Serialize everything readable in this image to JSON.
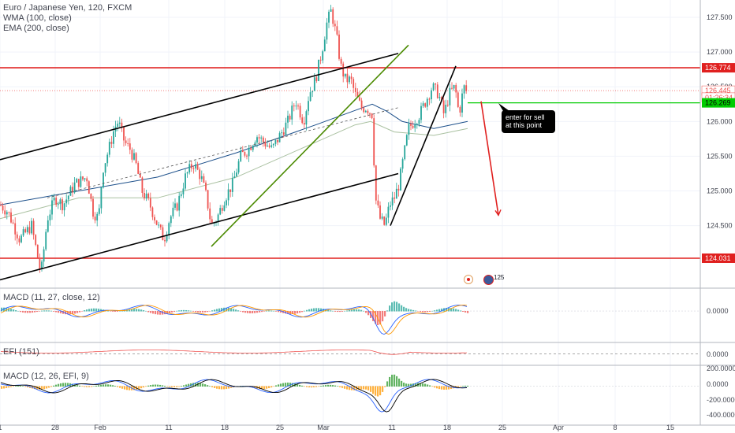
{
  "legend": {
    "title": "Euro / Japanese Yen, 120, FXCM",
    "wma": "WMA (100, close)",
    "ema": "EMA (200, close)",
    "macd1": "MACD (11, 27, close, 12)",
    "efi": "EFI (151)",
    "macd2": "MACD (12, 26, EFI, 9)"
  },
  "annotation": "enter for sell at this point",
  "event_badge_count": "125",
  "colors": {
    "up": "#26a69a",
    "down": "#ef5350",
    "level": "#e0201f",
    "channel": "#000000",
    "trendline": "#4a8a00",
    "green_level": "#00cc00",
    "wma": "#1c4f8a",
    "ema": "#a9c0a0",
    "macd_line": "#2962ff",
    "signal_line": "#ff9800",
    "efi_line": "#ef5350",
    "arrow": "#e0201f"
  },
  "chart_data": {
    "type": "candlestick",
    "title": "Euro / Japanese Yen, 120, FXCM",
    "x_tick_labels": [
      "1",
      "28",
      "Feb",
      "11",
      "18",
      "25",
      "Mar",
      "11",
      "18",
      "25",
      "Apr",
      "8",
      "15"
    ],
    "price_axis": {
      "range": [
        123.6,
        127.75
      ],
      "ticks": [
        "127.500",
        "127.000",
        "126.500",
        "126.000",
        "125.500",
        "125.000",
        "124.500"
      ]
    },
    "price_labels": {
      "resistance": "126.774",
      "last_price": "126.445",
      "countdown": "01:26:34",
      "entry": "126.269",
      "support": "124.031"
    },
    "horizontal_levels": [
      126.774,
      124.031
    ],
    "entry_level": 126.269,
    "price_path": [
      [
        0,
        124.8
      ],
      [
        10,
        124.7
      ],
      [
        25,
        124.3
      ],
      [
        40,
        124.5
      ],
      [
        52,
        123.8
      ],
      [
        60,
        124.6
      ],
      [
        70,
        124.9
      ],
      [
        80,
        124.8
      ],
      [
        95,
        125.1
      ],
      [
        110,
        125.2
      ],
      [
        118,
        124.7
      ],
      [
        125,
        124.6
      ],
      [
        130,
        125.3
      ],
      [
        138,
        125.6
      ],
      [
        145,
        125.9
      ],
      [
        150,
        126.0
      ],
      [
        158,
        125.7
      ],
      [
        165,
        125.6
      ],
      [
        172,
        125.4
      ],
      [
        180,
        125.0
      ],
      [
        190,
        124.8
      ],
      [
        200,
        124.5
      ],
      [
        208,
        124.3
      ],
      [
        215,
        124.6
      ],
      [
        225,
        124.8
      ],
      [
        235,
        125.2
      ],
      [
        245,
        125.4
      ],
      [
        255,
        125.2
      ],
      [
        262,
        124.9
      ],
      [
        268,
        124.5
      ],
      [
        275,
        124.6
      ],
      [
        285,
        124.9
      ],
      [
        295,
        125.1
      ],
      [
        305,
        125.5
      ],
      [
        315,
        125.6
      ],
      [
        325,
        125.8
      ],
      [
        335,
        125.7
      ],
      [
        345,
        125.6
      ],
      [
        355,
        125.8
      ],
      [
        365,
        126.0
      ],
      [
        375,
        126.3
      ],
      [
        385,
        126.0
      ],
      [
        392,
        126.4
      ],
      [
        400,
        126.6
      ],
      [
        408,
        127.0
      ],
      [
        414,
        127.4
      ],
      [
        420,
        127.6
      ],
      [
        427,
        127.2
      ],
      [
        432,
        126.8
      ],
      [
        438,
        126.6
      ],
      [
        445,
        126.6
      ],
      [
        450,
        126.4
      ],
      [
        458,
        126.2
      ],
      [
        465,
        126.2
      ],
      [
        472,
        126.1
      ],
      [
        476,
        124.9
      ],
      [
        482,
        124.6
      ],
      [
        488,
        124.5
      ],
      [
        494,
        124.8
      ],
      [
        500,
        124.9
      ],
      [
        506,
        125.1
      ],
      [
        512,
        125.5
      ],
      [
        518,
        125.9
      ],
      [
        525,
        126.0
      ],
      [
        532,
        126.1
      ],
      [
        540,
        126.3
      ],
      [
        548,
        126.5
      ],
      [
        556,
        126.4
      ],
      [
        563,
        126.1
      ],
      [
        570,
        126.4
      ],
      [
        577,
        126.5
      ],
      [
        582,
        126.1
      ],
      [
        588,
        126.5
      ],
      [
        593,
        126.4
      ]
    ],
    "wma_path": [
      [
        0,
        124.8
      ],
      [
        100,
        125.0
      ],
      [
        200,
        125.2
      ],
      [
        300,
        125.55
      ],
      [
        400,
        125.95
      ],
      [
        460,
        126.2
      ],
      [
        472,
        126.25
      ],
      [
        490,
        126.15
      ],
      [
        510,
        126.0
      ],
      [
        550,
        125.9
      ],
      [
        593,
        126.0
      ]
    ],
    "ema_path": [
      [
        0,
        124.6
      ],
      [
        100,
        124.9
      ],
      [
        200,
        124.9
      ],
      [
        300,
        125.2
      ],
      [
        400,
        125.7
      ],
      [
        450,
        125.95
      ],
      [
        470,
        126.0
      ],
      [
        500,
        125.85
      ],
      [
        550,
        125.8
      ],
      [
        593,
        125.9
      ]
    ],
    "lines": [
      {
        "name": "channel upper",
        "color": "#000000",
        "from": [
          0,
          125.45
        ],
        "to": [
          505,
          126.98
        ]
      },
      {
        "name": "channel lower",
        "color": "#000000",
        "from": [
          0,
          123.72
        ],
        "to": [
          505,
          125.25
        ]
      },
      {
        "name": "channel mid",
        "color": "#555555",
        "dashed": true,
        "from": [
          60,
          124.9
        ],
        "to": [
          505,
          126.2
        ]
      },
      {
        "name": "green trendline",
        "color": "#4a8a00",
        "from": [
          268,
          124.2
        ],
        "to": [
          518,
          127.1
        ]
      },
      {
        "name": "rising support",
        "color": "#000000",
        "from": [
          495,
          124.5
        ],
        "to": [
          578,
          126.8
        ]
      },
      {
        "name": "projected drop",
        "color": "#e0201f",
        "from": [
          610,
          126.29
        ],
        "to": [
          632,
          124.65
        ]
      }
    ],
    "panes": [
      {
        "name": "MACD (11, 27, close, 12)",
        "axis_ticks": [
          "0.0000"
        ],
        "axis_range": [
          -0.62,
          0.45
        ]
      },
      {
        "name": "EFI (151)",
        "axis_ticks": [
          "0.0000"
        ],
        "axis_range": [
          -1,
          1
        ]
      },
      {
        "name": "MACD (12, 26, EFI, 9)",
        "axis_ticks": [
          "200.0000",
          "0.0000",
          "-200.0000",
          "-400.0000"
        ],
        "axis_range": [
          -430,
          230
        ]
      }
    ]
  }
}
